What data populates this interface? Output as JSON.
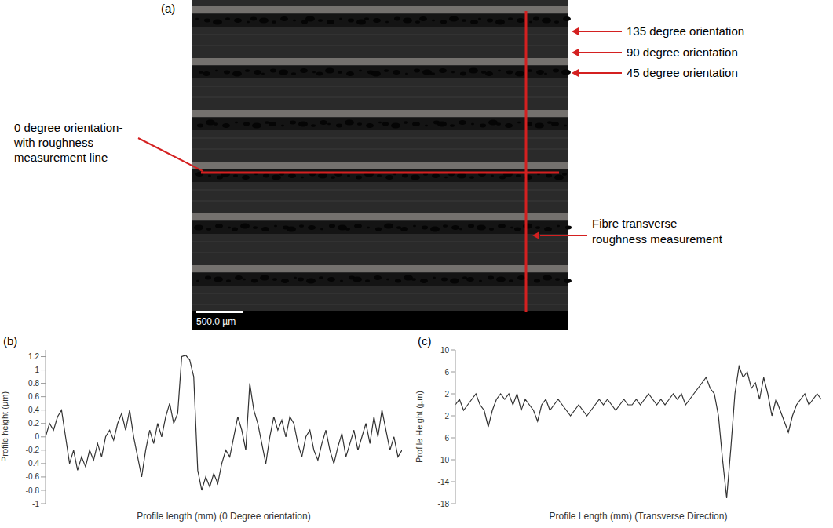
{
  "micrograph": {
    "panel": "(a)",
    "annotations": {
      "orientation_135": "135 degree orientation",
      "orientation_90": "90 degree orientation",
      "orientation_45": "45 degree orientation",
      "orientation_0": [
        "0 degree orientation-",
        "with roughness",
        "measurement line"
      ],
      "transverse": [
        "Fibre transverse",
        "roughness measurement"
      ]
    },
    "scale_bar": "500.0 µm"
  },
  "chart_data": [
    {
      "panel": "(b)",
      "type": "line",
      "x_label": "Profile length (mm) (0 Degree orientation)",
      "y_label": "Profile height (µm)",
      "color": "#333333",
      "tick_labels": "y",
      "x": [
        0,
        1,
        2,
        3,
        4,
        5,
        6,
        7,
        8,
        9,
        10,
        11,
        12,
        13,
        14,
        15,
        16,
        17,
        18,
        19,
        20,
        21,
        22,
        23,
        24,
        25,
        26,
        27,
        28,
        29,
        30,
        31,
        32,
        33,
        34,
        35,
        36,
        37,
        38,
        39,
        40,
        41,
        42,
        43,
        44,
        45,
        46,
        47,
        48,
        49,
        50,
        51,
        52,
        53,
        54,
        55,
        56,
        57,
        58,
        59,
        60,
        61,
        62,
        63,
        64,
        65,
        66,
        67,
        68,
        69,
        70,
        71,
        72,
        73,
        74,
        75,
        76,
        77,
        78,
        79,
        80,
        81,
        82,
        83,
        84,
        85,
        86,
        87,
        88,
        89
      ],
      "values": [
        0,
        0.2,
        0.1,
        0.3,
        0.4,
        0.0,
        -0.4,
        -0.2,
        -0.5,
        -0.3,
        -0.45,
        -0.2,
        -0.35,
        -0.1,
        -0.3,
        0.0,
        0.1,
        -0.05,
        0.2,
        0.35,
        0.1,
        0.4,
        0.0,
        -0.3,
        -0.6,
        -0.2,
        0.1,
        -0.1,
        0.2,
        0.0,
        0.3,
        0.5,
        0.2,
        0.35,
        1.2,
        1.22,
        1.15,
        0.9,
        -0.5,
        -0.8,
        -0.6,
        -0.75,
        -0.55,
        -0.7,
        -0.4,
        -0.2,
        -0.3,
        0.0,
        0.3,
        0.1,
        -0.2,
        0.8,
        0.4,
        0.2,
        -0.1,
        -0.4,
        0.0,
        0.3,
        0.1,
        0.25,
        0.0,
        0.3,
        0.2,
        -0.1,
        -0.3,
        0.0,
        0.1,
        -0.2,
        -0.35,
        -0.1,
        0.1,
        -0.2,
        -0.4,
        -0.15,
        0.05,
        -0.3,
        -0.1,
        0.1,
        -0.2,
        0.0,
        0.2,
        -0.1,
        0.3,
        0.0,
        0.4,
        0.1,
        -0.2,
        0.0,
        -0.3,
        -0.2
      ],
      "xlim": [
        0,
        89
      ],
      "ylim": [
        -1,
        1.3
      ],
      "yticks": [
        -1,
        -0.8,
        -0.6,
        -0.4,
        -0.2,
        0,
        0.2,
        0.4,
        0.6,
        0.8,
        1,
        1.2
      ]
    },
    {
      "panel": "(c)",
      "type": "line",
      "x_label": "Profile Length (mm) (Transverse Direction)",
      "y_label": "Profile Height (µm)",
      "color": "#333333",
      "tick_labels": "y",
      "x": [
        0,
        1,
        2,
        3,
        4,
        5,
        6,
        7,
        8,
        9,
        10,
        11,
        12,
        13,
        14,
        15,
        16,
        17,
        18,
        19,
        20,
        21,
        22,
        23,
        24,
        25,
        26,
        27,
        28,
        29,
        30,
        31,
        32,
        33,
        34,
        35,
        36,
        37,
        38,
        39,
        40,
        41,
        42,
        43,
        44,
        45,
        46,
        47,
        48,
        49,
        50,
        51,
        52,
        53,
        54,
        55,
        56,
        57,
        58,
        59,
        60,
        61,
        62,
        63,
        64,
        65,
        66,
        67,
        68,
        69,
        70,
        71,
        72,
        73,
        74,
        75,
        76,
        77,
        78,
        79,
        80,
        81,
        82,
        83,
        84,
        85,
        86,
        87,
        88,
        89
      ],
      "values": [
        0,
        1,
        -1,
        0,
        1,
        2,
        0,
        -1,
        -4,
        -1,
        1,
        2,
        1,
        2,
        0,
        2,
        -1,
        1,
        0,
        -1,
        -3,
        0,
        1,
        -1,
        0,
        1,
        0,
        -1,
        -2,
        -1,
        0,
        -1,
        -2,
        -1,
        0,
        1,
        0,
        1,
        0,
        -1,
        0,
        1,
        0,
        0,
        1,
        0,
        1,
        2,
        1,
        0,
        1,
        0,
        1,
        2,
        1,
        2,
        0,
        1,
        2,
        3,
        4,
        5,
        3,
        2,
        -2,
        -10,
        -17,
        -8,
        2,
        7,
        5,
        6,
        3,
        4,
        1,
        5,
        2,
        -2,
        1,
        -1,
        -3,
        -5,
        -2,
        0,
        1,
        2,
        0,
        1,
        2,
        1
      ],
      "xlim": [
        0,
        89
      ],
      "ylim": [
        -18,
        10
      ],
      "yticks": [
        -18,
        -14,
        -10,
        -6,
        -2,
        2,
        6,
        10
      ]
    }
  ]
}
